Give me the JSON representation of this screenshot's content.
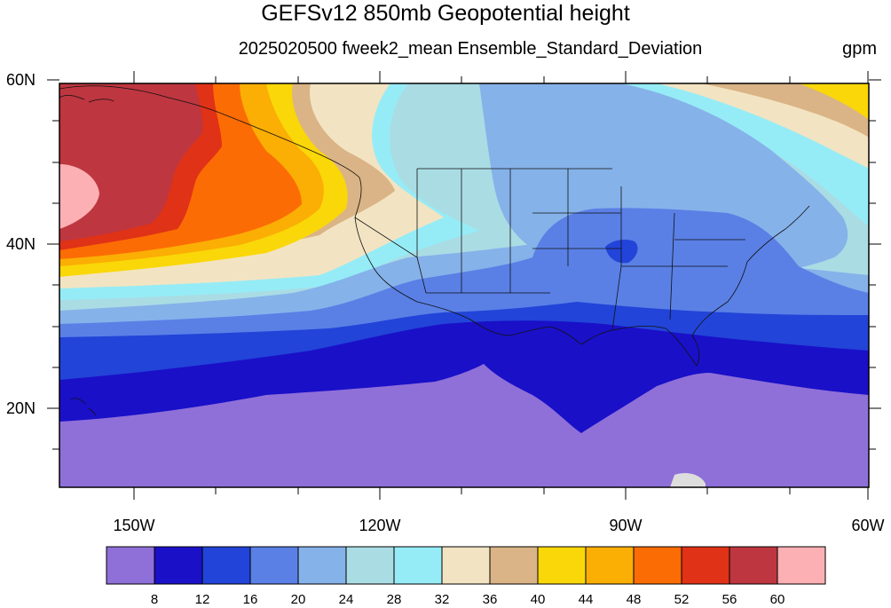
{
  "title": "GEFSv12 850mb Geopotential height",
  "subtitle": "2025020500 fweek2_mean Ensemble_Standard_Deviation",
  "units": "gpm",
  "lat_ticks": [
    "60N",
    "40N",
    "20N"
  ],
  "lon_ticks": [
    "150W",
    "120W",
    "90W",
    "60W"
  ],
  "colorbar": {
    "levels": [
      "8",
      "12",
      "16",
      "20",
      "24",
      "28",
      "32",
      "36",
      "40",
      "44",
      "48",
      "52",
      "56",
      "60"
    ],
    "colors": [
      "#8f70d8",
      "#1a10c8",
      "#2244d8",
      "#5a80e6",
      "#86b2ea",
      "#aadce4",
      "#96ecf6",
      "#f2e4c2",
      "#dab486",
      "#fad708",
      "#fbae04",
      "#fc6c04",
      "#e03216",
      "#be3640",
      "#fcb0b4"
    ]
  }
}
